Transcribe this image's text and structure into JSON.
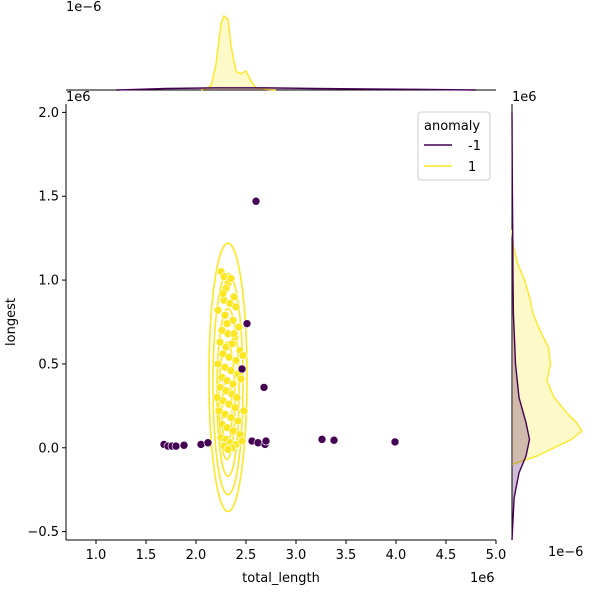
{
  "chart_data": {
    "type": "scatter",
    "subtype": "jointplot",
    "xlabel": "total_length",
    "ylabel": "longest",
    "x_offset_label": "1e6",
    "y_offset_label": "1e6",
    "top_marginal_offset_label": "1e−6",
    "right_marginal_offset_label": "1e−6",
    "right_marginal_y_offset_label": "1e6",
    "xlim": [
      0.7,
      5.0
    ],
    "ylim": [
      -0.55,
      2.05
    ],
    "x_ticks": [
      1.0,
      1.5,
      2.0,
      2.5,
      3.0,
      3.5,
      4.0,
      4.5,
      5.0
    ],
    "x_tick_labels": [
      "1.0",
      "1.5",
      "2.0",
      "2.5",
      "3.0",
      "3.5",
      "4.0",
      "4.5",
      "5.0"
    ],
    "y_ticks": [
      -0.5,
      0.0,
      0.5,
      1.0,
      1.5,
      2.0
    ],
    "y_tick_labels": [
      "−0.5",
      "0.0",
      "0.5",
      "1.0",
      "1.5",
      "2.0"
    ],
    "grid": false,
    "legend": {
      "title": "anomaly",
      "placement": "top-right",
      "entries": [
        {
          "label": "-1",
          "color": "#440154"
        },
        {
          "label": "1",
          "color": "#fde725"
        }
      ]
    },
    "series": [
      {
        "name": "-1",
        "color": "#440154",
        "points": [
          [
            1.68,
            0.02
          ],
          [
            1.72,
            0.01
          ],
          [
            1.76,
            0.01
          ],
          [
            1.8,
            0.01
          ],
          [
            1.88,
            0.015
          ],
          [
            2.05,
            0.02
          ],
          [
            2.12,
            0.03
          ],
          [
            2.6,
            1.47
          ],
          [
            2.51,
            0.74
          ],
          [
            2.68,
            0.36
          ],
          [
            2.46,
            0.47
          ],
          [
            2.56,
            0.04
          ],
          [
            2.62,
            0.03
          ],
          [
            2.69,
            0.02
          ],
          [
            2.7,
            0.04
          ],
          [
            3.26,
            0.05
          ],
          [
            3.38,
            0.045
          ],
          [
            3.99,
            0.035
          ]
        ]
      },
      {
        "name": "1",
        "color": "#fde725",
        "points": [
          [
            2.25,
            1.05
          ],
          [
            2.28,
            1.02
          ],
          [
            2.32,
            0.98
          ],
          [
            2.35,
            1.01
          ],
          [
            2.3,
            0.95
          ],
          [
            2.38,
            0.9
          ],
          [
            2.28,
            0.88
          ],
          [
            2.34,
            0.86
          ],
          [
            2.4,
            0.84
          ],
          [
            2.22,
            0.82
          ],
          [
            2.29,
            0.79
          ],
          [
            2.37,
            0.76
          ],
          [
            2.43,
            0.72
          ],
          [
            2.26,
            0.7
          ],
          [
            2.32,
            0.68
          ],
          [
            2.39,
            0.66
          ],
          [
            2.24,
            0.63
          ],
          [
            2.3,
            0.6
          ],
          [
            2.36,
            0.62
          ],
          [
            2.44,
            0.58
          ],
          [
            2.27,
            0.56
          ],
          [
            2.33,
            0.54
          ],
          [
            2.4,
            0.52
          ],
          [
            2.47,
            0.55
          ],
          [
            2.22,
            0.5
          ],
          [
            2.29,
            0.48
          ],
          [
            2.35,
            0.46
          ],
          [
            2.42,
            0.44
          ],
          [
            2.26,
            0.42
          ],
          [
            2.31,
            0.4
          ],
          [
            2.37,
            0.38
          ],
          [
            2.45,
            0.41
          ],
          [
            2.24,
            0.36
          ],
          [
            2.3,
            0.34
          ],
          [
            2.36,
            0.32
          ],
          [
            2.41,
            0.3
          ],
          [
            2.27,
            0.28
          ],
          [
            2.33,
            0.26
          ],
          [
            2.39,
            0.24
          ],
          [
            2.23,
            0.22
          ],
          [
            2.29,
            0.2
          ],
          [
            2.35,
            0.18
          ],
          [
            2.42,
            0.16
          ],
          [
            2.26,
            0.14
          ],
          [
            2.31,
            0.12
          ],
          [
            2.37,
            0.1
          ],
          [
            2.44,
            0.08
          ],
          [
            2.25,
            0.06
          ],
          [
            2.3,
            0.05
          ],
          [
            2.34,
            0.03
          ],
          [
            2.4,
            0.02
          ],
          [
            2.28,
            0.01
          ],
          [
            2.36,
            0.0
          ],
          [
            2.32,
            -0.01
          ],
          [
            2.46,
            0.04
          ],
          [
            2.21,
            0.3
          ],
          [
            2.48,
            0.22
          ],
          [
            2.31,
            0.74
          ],
          [
            2.27,
            0.92
          ],
          [
            2.38,
            0.68
          ]
        ]
      }
    ],
    "kde_contour": {
      "series": "1",
      "color": "#fde725",
      "levels": [
        {
          "cx": 2.32,
          "cy": 0.42,
          "rx": 0.19,
          "ry": 0.8
        },
        {
          "cx": 2.32,
          "cy": 0.38,
          "rx": 0.15,
          "ry": 0.66
        },
        {
          "cx": 2.32,
          "cy": 0.33,
          "rx": 0.11,
          "ry": 0.5
        },
        {
          "cx": 2.31,
          "cy": 0.28,
          "rx": 0.08,
          "ry": 0.35
        },
        {
          "cx": 2.31,
          "cy": 0.22,
          "rx": 0.05,
          "ry": 0.2
        }
      ]
    },
    "top_marginal": {
      "series": [
        {
          "name": "1",
          "color": "#fde725",
          "x": [
            2.05,
            2.15,
            2.2,
            2.25,
            2.28,
            2.32,
            2.35,
            2.4,
            2.45,
            2.5,
            2.55,
            2.6,
            2.7,
            2.8
          ],
          "density": [
            0.0,
            0.05,
            0.35,
            0.9,
            1.0,
            0.95,
            0.6,
            0.25,
            0.22,
            0.26,
            0.12,
            0.03,
            0.01,
            0.0
          ]
        },
        {
          "name": "-1",
          "color": "#440154",
          "x": [
            1.2,
            1.7,
            2.2,
            2.7,
            3.2,
            3.7,
            4.2,
            4.8
          ],
          "density": [
            0.0,
            0.02,
            0.03,
            0.03,
            0.02,
            0.015,
            0.01,
            0.0
          ]
        }
      ]
    },
    "right_marginal": {
      "series": [
        {
          "name": "1",
          "color": "#fde725",
          "y": [
            -0.1,
            -0.05,
            0.0,
            0.05,
            0.1,
            0.15,
            0.2,
            0.3,
            0.4,
            0.5,
            0.6,
            0.7,
            0.8,
            0.9,
            1.0,
            1.1,
            1.2,
            1.3
          ],
          "density": [
            0.0,
            0.35,
            0.6,
            0.85,
            1.0,
            0.92,
            0.8,
            0.6,
            0.5,
            0.55,
            0.52,
            0.4,
            0.3,
            0.25,
            0.18,
            0.08,
            0.02,
            0.0
          ]
        },
        {
          "name": "-1",
          "color": "#440154",
          "y": [
            -0.55,
            -0.3,
            -0.15,
            -0.05,
            0.05,
            0.15,
            0.3,
            0.5,
            0.8,
            1.0,
            1.3,
            1.6,
            2.0
          ],
          "density": [
            0.0,
            0.03,
            0.1,
            0.2,
            0.25,
            0.2,
            0.1,
            0.05,
            0.02,
            0.015,
            0.01,
            0.004,
            0.0
          ]
        }
      ]
    }
  }
}
